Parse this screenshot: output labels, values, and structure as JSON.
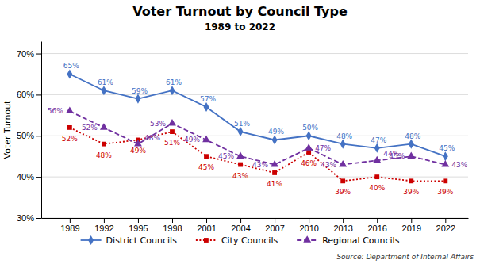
{
  "chart_data": {
    "type": "line",
    "title": "Voter Turnout by Council Type",
    "subtitle": "1989 to 2022",
    "y_label": "Voter Turnout",
    "source": "Source: Department of Internal Affairs",
    "x": [
      1989,
      1992,
      1995,
      1998,
      2001,
      2004,
      2007,
      2010,
      2013,
      2016,
      2019,
      2022
    ],
    "xlim": [
      1986.5,
      2024
    ],
    "xticks": [
      1989,
      1992,
      1995,
      1998,
      2001,
      2004,
      2007,
      2010,
      2013,
      2016,
      2019,
      2022
    ],
    "ylim": [
      30,
      73
    ],
    "yticks": [
      {
        "value": 30,
        "label": "30%"
      },
      {
        "value": 40,
        "label": "40%"
      },
      {
        "value": 50,
        "label": "50%"
      },
      {
        "value": 60,
        "label": "60%"
      },
      {
        "value": 70,
        "label": "70%"
      }
    ],
    "grid": true,
    "legend": "bottom",
    "data_labels": true,
    "series": [
      {
        "name": "District Councils",
        "color": "#4472C4",
        "marker": "diamond",
        "line_style": "solid",
        "values": [
          65,
          61,
          59,
          61,
          57,
          51,
          49,
          50,
          48,
          47,
          48,
          45
        ],
        "value_labels": [
          "65%",
          "61%",
          "59%",
          "61%",
          "57%",
          "51%",
          "49%",
          "50%",
          "48%",
          "47%",
          "48%",
          "45%"
        ]
      },
      {
        "name": "City Councils",
        "color": "#CC0000",
        "marker": "square",
        "line_style": "dotted",
        "values": [
          52,
          48,
          49,
          51,
          45,
          43,
          41,
          46,
          39,
          40,
          39,
          39
        ],
        "value_labels": [
          "52%",
          "48%",
          "49%",
          "51%",
          "45%",
          "43%",
          "41%",
          "46%",
          "39%",
          "40%",
          "39%",
          "39%"
        ]
      },
      {
        "name": "Regional Councils",
        "color": "#7030A0",
        "marker": "triangle",
        "line_style": "dashed",
        "values": [
          56,
          52,
          48,
          53,
          49,
          45,
          43,
          47,
          43,
          44,
          45,
          43
        ],
        "value_labels": [
          "56%",
          "52%",
          "48%",
          "53%",
          "49%",
          "45%",
          "43%",
          "47%",
          "43%",
          "44%",
          "45%",
          "43%"
        ]
      }
    ]
  }
}
